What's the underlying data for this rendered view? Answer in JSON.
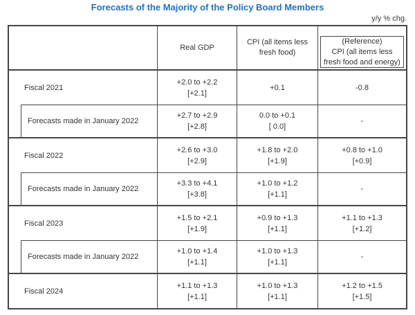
{
  "title": "Forecasts of the Majority of the Policy Board Members",
  "unit_label": "y/y % chg.",
  "colors": {
    "title_blue": "#1a73cf",
    "border_gray": "#454545",
    "text": "#333333",
    "background": "#ffffff"
  },
  "table": {
    "headers": {
      "row_label": "",
      "real_gdp": "Real GDP",
      "cpi_lines": [
        "CPI (all items less",
        "fresh food)"
      ],
      "reference_lines": [
        "(Reference)",
        "CPI (all items less",
        "fresh food and energy)"
      ]
    },
    "rows": [
      {
        "type": "fiscal",
        "label": "Fiscal 2021",
        "gdp": [
          "+2.0 to +2.2",
          "[+2.1]"
        ],
        "cpi": [
          "+0.1"
        ],
        "reference": [
          "-0.8"
        ]
      },
      {
        "type": "forecast",
        "label": "Forecasts made in January 2022",
        "gdp": [
          "+2.7 to +2.9",
          "[+2.8]"
        ],
        "cpi": [
          "0.0 to +0.1",
          "[ 0.0]"
        ],
        "reference": [
          "-"
        ]
      },
      {
        "type": "fiscal",
        "label": "Fiscal 2022",
        "gdp": [
          "+2.6 to +3.0",
          "[+2.9]"
        ],
        "cpi": [
          "+1.8 to +2.0",
          "[+1.9]"
        ],
        "reference": [
          "+0.8 to +1.0",
          "[+0.9]"
        ]
      },
      {
        "type": "forecast",
        "label": "Forecasts made in January 2022",
        "gdp": [
          "+3.3 to +4.1",
          "[+3.8]"
        ],
        "cpi": [
          "+1.0 to +1.2",
          "[+1.1]"
        ],
        "reference": [
          "-"
        ]
      },
      {
        "type": "fiscal",
        "label": "Fiscal 2023",
        "gdp": [
          "+1.5 to +2.1",
          "[+1.9]"
        ],
        "cpi": [
          "+0.9 to +1.3",
          "[+1.1]"
        ],
        "reference": [
          "+1.1 to +1.3",
          "[+1.2]"
        ]
      },
      {
        "type": "forecast",
        "label": "Forecasts made in January 2022",
        "gdp": [
          "+1.0 to +1.4",
          "[+1.1]"
        ],
        "cpi": [
          "+1.0 to +1.3",
          "[+1.1]"
        ],
        "reference": [
          "-"
        ]
      },
      {
        "type": "fiscal",
        "label": "Fiscal 2024",
        "gdp": [
          "+1.1 to +1.3",
          "[+1.1]"
        ],
        "cpi": [
          "+1.0 to +1.3",
          "[+1.1]"
        ],
        "reference": [
          "+1.2 to +1.5",
          "[+1.5]"
        ]
      }
    ]
  }
}
